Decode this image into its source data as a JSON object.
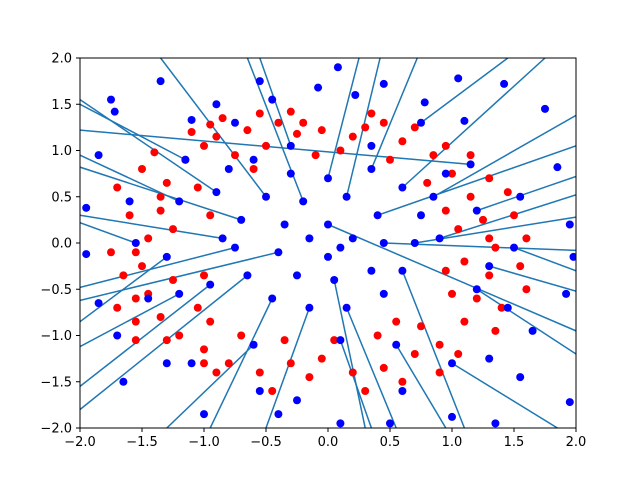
{
  "chart_data": {
    "type": "scatter",
    "title": "",
    "xlabel": "",
    "ylabel": "",
    "xlim": [
      -2.0,
      2.0
    ],
    "ylim": [
      -2.0,
      2.0
    ],
    "grid": false,
    "legend": "none",
    "x_ticks": [
      "−2.0",
      "−1.5",
      "−1.0",
      "−0.5",
      "0.0",
      "0.5",
      "1.0",
      "1.5",
      "2.0"
    ],
    "y_ticks": [
      "−2.0",
      "−1.5",
      "−1.0",
      "−0.5",
      "0.0",
      "0.5",
      "1.0",
      "1.5",
      "2.0"
    ],
    "x_tick_values": [
      -2.0,
      -1.5,
      -1.0,
      -0.5,
      0.0,
      0.5,
      1.0,
      1.5,
      2.0
    ],
    "y_tick_values": [
      -2.0,
      -1.5,
      -1.0,
      -0.5,
      0.0,
      0.5,
      1.0,
      1.5,
      2.0
    ],
    "colors": {
      "class_a": "#ff0000",
      "class_b": "#0000ff",
      "segments": "#1f77b4"
    },
    "series": [
      {
        "marker": "circle",
        "color": "#ff0000",
        "points": [
          [
            -0.25,
            1.18
          ],
          [
            -0.1,
            0.95
          ],
          [
            0.1,
            1.0
          ],
          [
            0.3,
            1.25
          ],
          [
            -0.4,
            1.3
          ],
          [
            -0.65,
            1.22
          ],
          [
            -0.85,
            1.35
          ],
          [
            -1.0,
            1.05
          ],
          [
            -1.15,
            0.9
          ],
          [
            -1.3,
            0.65
          ],
          [
            -1.35,
            0.35
          ],
          [
            -1.45,
            0.05
          ],
          [
            -1.5,
            -0.25
          ],
          [
            -1.45,
            -0.55
          ],
          [
            -1.35,
            -0.8
          ],
          [
            -1.2,
            -1.0
          ],
          [
            -1.0,
            -1.15
          ],
          [
            -0.8,
            -1.3
          ],
          [
            -0.55,
            -1.4
          ],
          [
            -0.3,
            -1.3
          ],
          [
            -0.05,
            -1.25
          ],
          [
            0.2,
            -1.4
          ],
          [
            0.45,
            -1.35
          ],
          [
            0.7,
            -1.2
          ],
          [
            0.9,
            -1.1
          ],
          [
            1.1,
            -0.85
          ],
          [
            1.2,
            -0.6
          ],
          [
            1.3,
            -0.35
          ],
          [
            1.35,
            -0.05
          ],
          [
            1.25,
            0.25
          ],
          [
            1.15,
            0.5
          ],
          [
            1.0,
            0.75
          ],
          [
            0.85,
            0.95
          ],
          [
            0.6,
            1.1
          ],
          [
            0.45,
            1.3
          ],
          [
            -0.5,
            1.05
          ],
          [
            -0.75,
            0.95
          ],
          [
            -1.05,
            0.6
          ],
          [
            -1.25,
            0.15
          ],
          [
            -1.25,
            -0.4
          ],
          [
            -1.05,
            -0.7
          ],
          [
            -0.7,
            -1.0
          ],
          [
            -0.35,
            -1.05
          ],
          [
            0.05,
            -1.05
          ],
          [
            0.4,
            -1.0
          ],
          [
            0.75,
            -0.9
          ],
          [
            1.0,
            -0.55
          ],
          [
            1.1,
            -0.2
          ],
          [
            1.05,
            0.15
          ],
          [
            0.8,
            0.65
          ],
          [
            0.2,
            1.15
          ],
          [
            -0.2,
            1.3
          ],
          [
            -0.9,
            1.15
          ],
          [
            -1.35,
            0.5
          ],
          [
            -1.55,
            -0.1
          ],
          [
            -1.55,
            -0.6
          ],
          [
            -1.3,
            -1.05
          ],
          [
            -0.9,
            -1.4
          ],
          [
            -0.15,
            -1.45
          ],
          [
            0.6,
            -1.5
          ],
          [
            1.05,
            -1.2
          ],
          [
            1.4,
            -0.7
          ],
          [
            1.55,
            -0.25
          ],
          [
            1.5,
            0.3
          ],
          [
            1.3,
            0.7
          ],
          [
            0.95,
            1.05
          ],
          [
            0.35,
            1.4
          ],
          [
            -0.55,
            1.4
          ],
          [
            -1.1,
            1.2
          ],
          [
            -1.5,
            0.8
          ],
          [
            -1.6,
            0.3
          ],
          [
            -1.65,
            -0.35
          ],
          [
            -1.55,
            -0.85
          ],
          [
            -1.0,
            -1.3
          ],
          [
            -0.45,
            -1.6
          ],
          [
            0.3,
            -1.6
          ],
          [
            0.9,
            -1.4
          ],
          [
            1.35,
            -0.95
          ],
          [
            1.6,
            -0.5
          ],
          [
            1.6,
            0.05
          ],
          [
            1.45,
            0.55
          ],
          [
            1.15,
            0.95
          ],
          [
            0.7,
            1.25
          ],
          [
            -0.3,
            1.42
          ],
          [
            -0.95,
            1.28
          ],
          [
            -1.4,
            0.98
          ],
          [
            -1.7,
            0.6
          ],
          [
            -1.75,
            -0.1
          ],
          [
            -1.7,
            -0.7
          ],
          [
            -1.55,
            -1.05
          ],
          [
            -0.95,
            -0.85
          ],
          [
            0.55,
            -0.85
          ],
          [
            0.95,
            -0.3
          ],
          [
            0.95,
            0.35
          ],
          [
            0.5,
            0.9
          ],
          [
            -0.6,
            0.8
          ],
          [
            -0.95,
            0.3
          ],
          [
            -1.0,
            -0.35
          ],
          [
            1.3,
            0.05
          ],
          [
            -0.05,
            1.22
          ]
        ]
      },
      {
        "marker": "circle",
        "color": "#0000ff",
        "points": [
          [
            0.08,
            1.9
          ],
          [
            -0.55,
            1.75
          ],
          [
            0.45,
            1.72
          ],
          [
            1.05,
            1.78
          ],
          [
            -1.35,
            1.75
          ],
          [
            1.42,
            1.72
          ],
          [
            -1.75,
            1.55
          ],
          [
            1.75,
            1.45
          ],
          [
            -1.72,
            1.42
          ],
          [
            -0.08,
            1.68
          ],
          [
            -0.45,
            1.55
          ],
          [
            0.22,
            1.6
          ],
          [
            0.78,
            1.52
          ],
          [
            -0.9,
            1.5
          ],
          [
            -1.1,
            1.33
          ],
          [
            1.1,
            1.32
          ],
          [
            -1.85,
            0.95
          ],
          [
            1.85,
            0.82
          ],
          [
            -1.95,
            0.38
          ],
          [
            1.95,
            0.2
          ],
          [
            -1.95,
            -0.12
          ],
          [
            1.98,
            -0.15
          ],
          [
            -1.85,
            -0.65
          ],
          [
            1.92,
            -0.55
          ],
          [
            -1.7,
            -1.0
          ],
          [
            1.65,
            -0.95
          ],
          [
            -1.65,
            -1.5
          ],
          [
            1.55,
            -1.45
          ],
          [
            -1.0,
            -1.85
          ],
          [
            1.0,
            -1.88
          ],
          [
            0.1,
            -1.95
          ],
          [
            -0.4,
            -1.85
          ],
          [
            0.5,
            -1.95
          ],
          [
            1.35,
            -1.95
          ],
          [
            -0.55,
            -1.6
          ],
          [
            0.6,
            -1.6
          ],
          [
            -1.3,
            -1.3
          ],
          [
            1.3,
            -1.25
          ],
          [
            -0.25,
            -1.7
          ],
          [
            1.95,
            -1.72
          ],
          [
            -0.6,
            0.9
          ],
          [
            -0.3,
            0.75
          ],
          [
            0.0,
            0.7
          ],
          [
            0.35,
            0.8
          ],
          [
            0.6,
            0.6
          ],
          [
            0.75,
            0.3
          ],
          [
            0.7,
            0.0
          ],
          [
            0.6,
            -0.3
          ],
          [
            0.45,
            -0.55
          ],
          [
            0.15,
            -0.7
          ],
          [
            -0.15,
            -0.7
          ],
          [
            -0.45,
            -0.6
          ],
          [
            -0.65,
            -0.35
          ],
          [
            -0.75,
            -0.05
          ],
          [
            -0.7,
            0.25
          ],
          [
            -0.5,
            0.5
          ],
          [
            -0.2,
            0.45
          ],
          [
            0.15,
            0.5
          ],
          [
            0.4,
            0.3
          ],
          [
            0.45,
            0.0
          ],
          [
            0.35,
            -0.3
          ],
          [
            0.05,
            -0.4
          ],
          [
            -0.25,
            -0.35
          ],
          [
            -0.4,
            -0.1
          ],
          [
            -0.35,
            0.2
          ],
          [
            0.0,
            0.2
          ],
          [
            0.2,
            0.05
          ],
          [
            0.0,
            -0.15
          ],
          [
            -0.15,
            0.05
          ],
          [
            0.1,
            -0.05
          ],
          [
            -1.2,
            0.45
          ],
          [
            -1.3,
            -0.15
          ],
          [
            -1.2,
            -0.55
          ],
          [
            -0.95,
            -0.45
          ],
          [
            -0.85,
            0.05
          ],
          [
            -0.9,
            0.55
          ],
          [
            -0.8,
            0.8
          ],
          [
            1.2,
            0.35
          ],
          [
            1.3,
            -0.25
          ],
          [
            1.2,
            -0.5
          ],
          [
            0.9,
            0.05
          ],
          [
            0.85,
            0.5
          ],
          [
            0.95,
            0.75
          ],
          [
            -0.3,
            1.05
          ],
          [
            0.35,
            1.05
          ],
          [
            0.1,
            -1.05
          ],
          [
            -0.6,
            -1.1
          ],
          [
            0.55,
            -1.1
          ],
          [
            -1.15,
            0.9
          ],
          [
            1.15,
            0.85
          ],
          [
            -1.6,
            0.45
          ],
          [
            1.55,
            0.5
          ],
          [
            -1.55,
            0.0
          ],
          [
            1.5,
            -0.05
          ],
          [
            -1.45,
            -0.6
          ],
          [
            1.45,
            -0.7
          ],
          [
            -1.1,
            -1.3
          ],
          [
            1.0,
            -1.3
          ],
          [
            -0.75,
            1.3
          ],
          [
            0.75,
            1.3
          ]
        ]
      }
    ],
    "segments_from": [
      [
        1.15,
        0.85
      ],
      [
        0.0,
        0.2
      ],
      [
        -0.5,
        0.5
      ],
      [
        0.6,
        -0.3
      ],
      [
        -1.2,
        0.45
      ],
      [
        1.2,
        0.35
      ],
      [
        -0.3,
        1.05
      ],
      [
        0.1,
        -1.05
      ],
      [
        0.45,
        0.0
      ],
      [
        -0.75,
        -0.05
      ],
      [
        0.75,
        1.3
      ],
      [
        -0.6,
        -1.1
      ],
      [
        1.3,
        -0.25
      ],
      [
        -1.3,
        -0.15
      ],
      [
        0.35,
        0.8
      ],
      [
        -0.45,
        -0.6
      ],
      [
        0.9,
        0.05
      ],
      [
        -0.85,
        0.05
      ],
      [
        0.05,
        -0.4
      ],
      [
        -0.2,
        0.45
      ],
      [
        1.5,
        -0.05
      ],
      [
        -1.55,
        0.0
      ],
      [
        0.55,
        -1.1
      ],
      [
        -1.15,
        0.9
      ],
      [
        0.15,
        0.5
      ],
      [
        -0.15,
        -0.7
      ],
      [
        1.0,
        -1.3
      ],
      [
        -0.9,
        0.55
      ],
      [
        0.4,
        0.3
      ],
      [
        -0.4,
        -0.1
      ],
      [
        0.7,
        0.0
      ],
      [
        -0.7,
        0.25
      ],
      [
        1.2,
        -0.5
      ],
      [
        -1.2,
        -0.55
      ],
      [
        0.0,
        0.7
      ],
      [
        0.15,
        -0.7
      ],
      [
        0.85,
        0.5
      ],
      [
        -0.95,
        -0.45
      ],
      [
        0.6,
        0.6
      ],
      [
        -0.65,
        -0.35
      ]
    ],
    "segments_to": [
      [
        -2.0,
        1.22
      ],
      [
        2.0,
        -0.95
      ],
      [
        -1.35,
        2.0
      ],
      [
        1.1,
        -2.0
      ],
      [
        -2.0,
        0.95
      ],
      [
        2.0,
        0.72
      ],
      [
        -0.55,
        2.0
      ],
      [
        0.35,
        -2.0
      ],
      [
        2.0,
        -0.08
      ],
      [
        -2.0,
        -0.48
      ],
      [
        1.45,
        2.0
      ],
      [
        -1.3,
        -2.0
      ],
      [
        2.0,
        -0.52
      ],
      [
        -2.0,
        -0.85
      ],
      [
        0.72,
        2.0
      ],
      [
        -0.95,
        -2.0
      ],
      [
        2.0,
        0.52
      ],
      [
        -2.0,
        0.3
      ],
      [
        0.3,
        -2.0
      ],
      [
        -0.65,
        2.0
      ],
      [
        2.0,
        -0.3
      ],
      [
        -2.0,
        0.22
      ],
      [
        0.95,
        -2.0
      ],
      [
        -2.0,
        1.5
      ],
      [
        0.42,
        2.0
      ],
      [
        -0.5,
        -2.0
      ],
      [
        1.85,
        -2.0
      ],
      [
        -2.0,
        1.55
      ],
      [
        2.0,
        1.05
      ],
      [
        -2.0,
        -0.62
      ],
      [
        2.0,
        0.28
      ],
      [
        -2.0,
        0.82
      ],
      [
        2.0,
        -1.2
      ],
      [
        -2.0,
        -1.12
      ],
      [
        0.25,
        2.0
      ],
      [
        0.55,
        -2.0
      ],
      [
        2.0,
        1.38
      ],
      [
        -2.0,
        -1.55
      ],
      [
        1.75,
        2.0
      ],
      [
        -2.0,
        -1.8
      ]
    ]
  }
}
